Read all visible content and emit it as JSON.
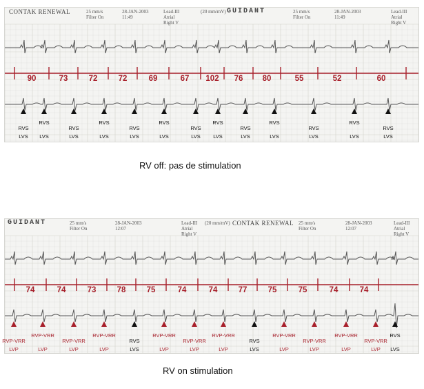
{
  "panels": [
    {
      "id": "off",
      "header": [
        {
          "text": "CONTAK RENEWAL",
          "kind": "big",
          "x": 6
        },
        {
          "text": "25 mm/s\nFilter On",
          "kind": "small",
          "x": 118
        },
        {
          "text": "28-JAN-2003\n11:49",
          "kind": "small",
          "x": 170
        },
        {
          "text": "Lead-III\nAtrial\nRight V",
          "kind": "small",
          "x": 230
        },
        {
          "text": "(20 mm/mV)",
          "kind": "small",
          "x": 284
        },
        {
          "text": "GUIDANT",
          "kind": "logo",
          "x": 322
        },
        {
          "text": "25 mm/s\nFilter On",
          "kind": "small",
          "x": 418
        },
        {
          "text": "28-JAN-2003\n11:49",
          "kind": "small",
          "x": 478
        },
        {
          "text": "Lead-III\nAtrial\nRight V",
          "kind": "small",
          "x": 560
        }
      ],
      "rates": [
        "90",
        "73",
        "72",
        "72",
        "69",
        "67",
        "102",
        "76",
        "80",
        "55",
        "52",
        "60"
      ],
      "annotations": [
        {
          "x": 28,
          "top": "RVS",
          "bottom": "LVS",
          "color": "black"
        },
        {
          "x": 58,
          "top": "RVS",
          "bottom": "LVS",
          "color": "black"
        },
        {
          "x": 101,
          "top": "RVS",
          "bottom": "LVS",
          "color": "black"
        },
        {
          "x": 145,
          "top": "RVS",
          "bottom": "LVS",
          "color": "black"
        },
        {
          "x": 189,
          "top": "RVS",
          "bottom": "LVS",
          "color": "black"
        },
        {
          "x": 232,
          "top": "RVS",
          "bottom": "LVS",
          "color": "black"
        },
        {
          "x": 278,
          "top": "RVS",
          "bottom": "LVS",
          "color": "black"
        },
        {
          "x": 310,
          "top": "RVS",
          "bottom": "LVS",
          "color": "black"
        },
        {
          "x": 350,
          "top": "RVS",
          "bottom": "LVS",
          "color": "black"
        },
        {
          "x": 392,
          "top": "RVS",
          "bottom": "LVS",
          "color": "black"
        },
        {
          "x": 449,
          "top": "RVS",
          "bottom": "LVS",
          "color": "black"
        },
        {
          "x": 508,
          "top": "RVS",
          "bottom": "LVS",
          "color": "black"
        },
        {
          "x": 557,
          "top": "RVS",
          "bottom": "LVS",
          "color": "black"
        }
      ],
      "caption": "RV off: pas de stimulation"
    },
    {
      "id": "on",
      "header": [
        {
          "text": "GUIDANT",
          "kind": "logo",
          "x": 4
        },
        {
          "text": "25 mm/s\nFilter On",
          "kind": "small",
          "x": 94
        },
        {
          "text": "28-JAN-2003\n12:07",
          "kind": "small",
          "x": 160
        },
        {
          "text": "Lead-III\nAtrial\nRight V",
          "kind": "small",
          "x": 256
        },
        {
          "text": "(20 mm/mV)",
          "kind": "small",
          "x": 290
        },
        {
          "text": "CONTAK RENEWAL",
          "kind": "big",
          "x": 330
        },
        {
          "text": "25 mm/s\nFilter On",
          "kind": "small",
          "x": 426
        },
        {
          "text": "28-JAN-2003\n12:07",
          "kind": "small",
          "x": 494
        },
        {
          "text": "Lead-III\nAtrial\nRight V",
          "kind": "small",
          "x": 564
        }
      ],
      "rates": [
        "74",
        "74",
        "73",
        "78",
        "75",
        "74",
        "74",
        "77",
        "75",
        "75",
        "74",
        "74"
      ],
      "annotations": [
        {
          "x": 14,
          "top": "RVP-VRR",
          "bottom": "LVP",
          "color": "red"
        },
        {
          "x": 56,
          "top": "RVP-VRR",
          "bottom": "LVP",
          "color": "red"
        },
        {
          "x": 101,
          "top": "RVP-VRR",
          "bottom": "LVP",
          "color": "red"
        },
        {
          "x": 145,
          "top": "RVP-VRR",
          "bottom": "LVP",
          "color": "red"
        },
        {
          "x": 189,
          "top": "RVS",
          "bottom": "LVS",
          "color": "black"
        },
        {
          "x": 232,
          "top": "RVP-VRR",
          "bottom": "LVP",
          "color": "red"
        },
        {
          "x": 276,
          "top": "RVP-VRR",
          "bottom": "LVP",
          "color": "red"
        },
        {
          "x": 318,
          "top": "RVP-VRR",
          "bottom": "LVP",
          "color": "red"
        },
        {
          "x": 363,
          "top": "RVS",
          "bottom": "LVS",
          "color": "black"
        },
        {
          "x": 406,
          "top": "RVP-VRR",
          "bottom": "LVP",
          "color": "red"
        },
        {
          "x": 450,
          "top": "RVP-VRR",
          "bottom": "LVP",
          "color": "red"
        },
        {
          "x": 496,
          "top": "RVP-VRR",
          "bottom": "LVP",
          "color": "red"
        },
        {
          "x": 539,
          "top": "RVP-VRR",
          "bottom": "LVP",
          "color": "red"
        },
        {
          "x": 567,
          "top": "RVS",
          "bottom": "LVS",
          "color": "black"
        }
      ],
      "caption": "RV on stimulation"
    }
  ],
  "colors": {
    "marker_red": "#a8202b",
    "trace": "#555555",
    "grid": "#d2d2cc"
  }
}
